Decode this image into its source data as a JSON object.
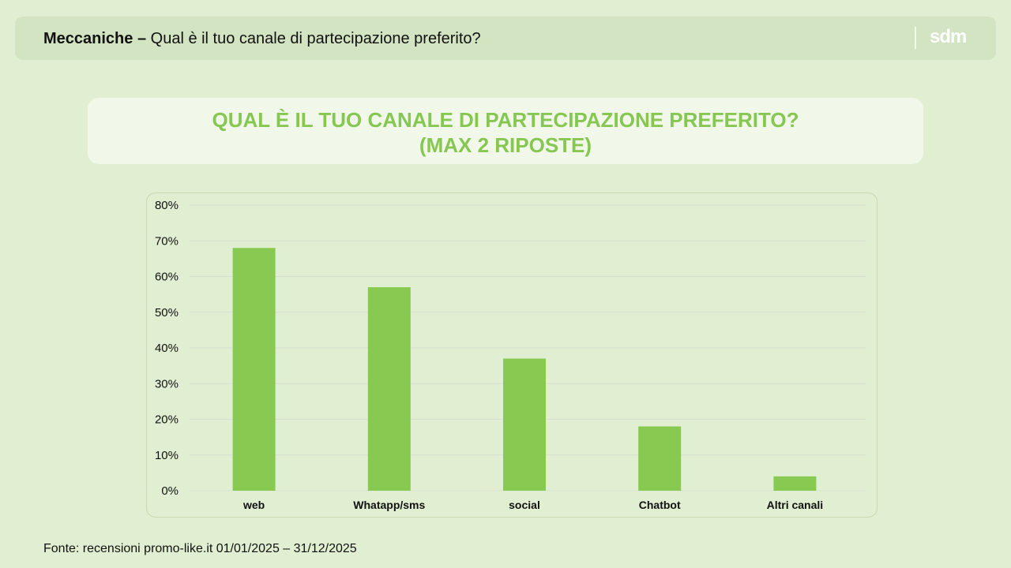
{
  "header": {
    "bold": "Meccaniche –",
    "rest": " Qual è il tuo canale di partecipazione preferito?",
    "logo": "sdm"
  },
  "banner": {
    "line1": "QUAL È  IL TUO CANALE DI PARTECIPAZIONE PREFERITO?",
    "line2": "(MAX 2 RIPOSTE)"
  },
  "source": "Fonte: recensioni promo-like.it 01/01/2025 – 31/12/2025",
  "colors": {
    "bar": "#88c951",
    "grid": "#d6dfd0"
  },
  "chart_data": {
    "type": "bar",
    "title": "QUAL È  IL TUO CANALE DI PARTECIPAZIONE PREFERITO? (MAX 2 RIPOSTE)",
    "categories": [
      "web",
      "Whatapp/sms",
      "social",
      "Chatbot",
      "Altri canali"
    ],
    "values": [
      68,
      57,
      37,
      18,
      4
    ],
    "yticks": [
      "0%",
      "10%",
      "20%",
      "30%",
      "40%",
      "50%",
      "60%",
      "70%",
      "80%"
    ],
    "ylim": [
      0,
      80
    ],
    "xlabel": "",
    "ylabel": "",
    "grid": true
  }
}
